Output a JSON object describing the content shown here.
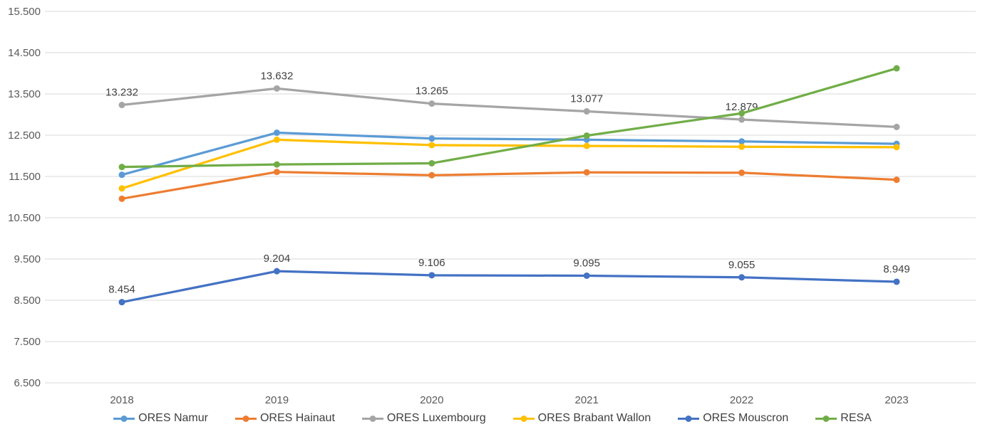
{
  "chart_data": {
    "type": "line",
    "title": "",
    "categories": [
      "2018",
      "2019",
      "2020",
      "2021",
      "2022",
      "2023"
    ],
    "y_axis": {
      "min": 6500,
      "max": 15500,
      "step": 1000,
      "tick_labels": [
        "15.500",
        "14.500",
        "13.500",
        "12.500",
        "11.500",
        "10.500",
        "9.500",
        "8.500",
        "7.500",
        "6.500"
      ]
    },
    "grid": true,
    "legend_position": "bottom",
    "series": [
      {
        "name": "ORES Namur",
        "color": "#5B9BD5",
        "values": [
          11540,
          12560,
          12420,
          12390,
          12350,
          12290
        ],
        "labels": [
          null,
          null,
          null,
          null,
          null,
          null
        ]
      },
      {
        "name": "ORES Hainaut",
        "color": "#ED7D31",
        "values": [
          10960,
          11610,
          11530,
          11600,
          11590,
          11420
        ],
        "labels": [
          null,
          null,
          null,
          null,
          null,
          null
        ]
      },
      {
        "name": "ORES Luxembourg",
        "color": "#A5A5A5",
        "values": [
          13232,
          13632,
          13265,
          13077,
          12879,
          12700
        ],
        "labels": [
          "13.232",
          "13.632",
          "13.265",
          "13.077",
          "12.879",
          null
        ]
      },
      {
        "name": "ORES Brabant Wallon",
        "color": "#FFC000",
        "values": [
          11210,
          12390,
          12260,
          12240,
          12220,
          12210
        ],
        "labels": [
          null,
          null,
          null,
          null,
          null,
          null
        ]
      },
      {
        "name": "ORES Mouscron",
        "color": "#4472C4",
        "values": [
          8454,
          9204,
          9106,
          9095,
          9055,
          8949
        ],
        "labels": [
          "8.454",
          "9.204",
          "9.106",
          "9.095",
          "9.055",
          "8.949"
        ]
      },
      {
        "name": "RESA",
        "color": "#70AD47",
        "values": [
          11730,
          11790,
          11820,
          12490,
          13030,
          14120
        ],
        "labels": [
          null,
          null,
          null,
          null,
          null,
          null
        ]
      }
    ]
  },
  "style": {
    "background": "#FFFFFF",
    "gridline_color": "#D9D9D9",
    "axis_text_color": "#595959",
    "data_label_color": "#404040",
    "legend_text_color": "#404040"
  }
}
